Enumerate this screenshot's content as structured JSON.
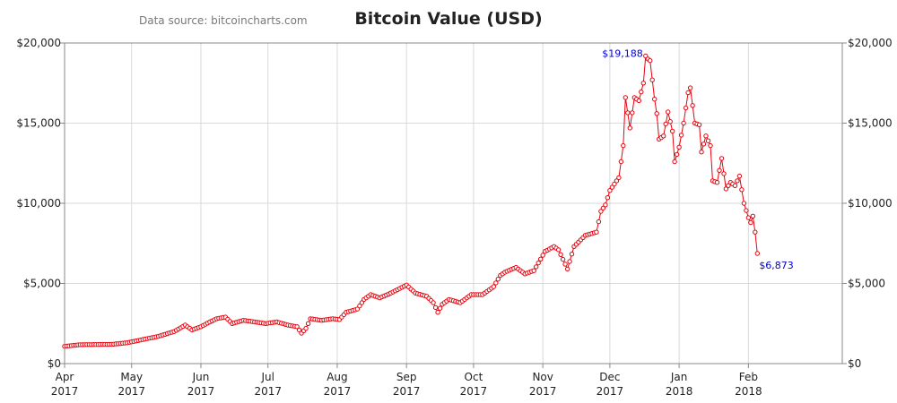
{
  "header": {
    "title": "Bitcoin Value (USD)",
    "source": "Data source: bitcoincharts.com"
  },
  "chart_data": {
    "type": "line",
    "title": "Bitcoin Value (USD)",
    "xlabel": "",
    "ylabel": "",
    "x_axis_type": "date",
    "xlim": [
      "2017-04-01",
      "2018-03-15"
    ],
    "ylim": [
      0,
      20000
    ],
    "grid": true,
    "legend": "none",
    "line_color": "#e8000b",
    "marker_fill": "#ffffff",
    "annotation_color": "#0000cc",
    "y_ticks": [
      0,
      5000,
      10000,
      15000,
      20000
    ],
    "y_tick_labels": [
      "$0",
      "$5,000",
      "$10,000",
      "$15,000",
      "$20,000"
    ],
    "x_ticks": [
      {
        "date": "2017-04-01",
        "month": "Apr",
        "year": "2017"
      },
      {
        "date": "2017-05-01",
        "month": "May",
        "year": "2017"
      },
      {
        "date": "2017-06-01",
        "month": "Jun",
        "year": "2017"
      },
      {
        "date": "2017-07-01",
        "month": "Jul",
        "year": "2017"
      },
      {
        "date": "2017-08-01",
        "month": "Aug",
        "year": "2017"
      },
      {
        "date": "2017-09-01",
        "month": "Sep",
        "year": "2017"
      },
      {
        "date": "2017-10-01",
        "month": "Oct",
        "year": "2017"
      },
      {
        "date": "2017-11-01",
        "month": "Nov",
        "year": "2017"
      },
      {
        "date": "2017-12-01",
        "month": "Dec",
        "year": "2017"
      },
      {
        "date": "2018-01-01",
        "month": "Jan",
        "year": "2018"
      },
      {
        "date": "2018-02-01",
        "month": "Feb",
        "year": "2018"
      }
    ],
    "annotations": [
      {
        "date": "2017-12-17",
        "value": 19188,
        "label": "$19,188"
      },
      {
        "date": "2018-02-05",
        "value": 6873,
        "label": "$6,873"
      }
    ],
    "series": [
      {
        "values": [
          [
            "2017-04-01",
            1080
          ],
          [
            "2017-04-08",
            1180
          ],
          [
            "2017-04-15",
            1190
          ],
          [
            "2017-04-22",
            1200
          ],
          [
            "2017-04-29",
            1300
          ],
          [
            "2017-05-06",
            1500
          ],
          [
            "2017-05-13",
            1700
          ],
          [
            "2017-05-20",
            2000
          ],
          [
            "2017-05-25",
            2400
          ],
          [
            "2017-05-28",
            2100
          ],
          [
            "2017-06-01",
            2300
          ],
          [
            "2017-06-05",
            2600
          ],
          [
            "2017-06-08",
            2800
          ],
          [
            "2017-06-12",
            2900
          ],
          [
            "2017-06-15",
            2500
          ],
          [
            "2017-06-20",
            2700
          ],
          [
            "2017-06-25",
            2600
          ],
          [
            "2017-06-30",
            2500
          ],
          [
            "2017-07-05",
            2600
          ],
          [
            "2017-07-10",
            2400
          ],
          [
            "2017-07-14",
            2300
          ],
          [
            "2017-07-16",
            1900
          ],
          [
            "2017-07-18",
            2200
          ],
          [
            "2017-07-20",
            2800
          ],
          [
            "2017-07-25",
            2700
          ],
          [
            "2017-07-30",
            2800
          ],
          [
            "2017-08-02",
            2750
          ],
          [
            "2017-08-05",
            3200
          ],
          [
            "2017-08-10",
            3400
          ],
          [
            "2017-08-13",
            4000
          ],
          [
            "2017-08-16",
            4300
          ],
          [
            "2017-08-20",
            4100
          ],
          [
            "2017-08-25",
            4400
          ],
          [
            "2017-09-01",
            4900
          ],
          [
            "2017-09-05",
            4400
          ],
          [
            "2017-09-10",
            4200
          ],
          [
            "2017-09-13",
            3800
          ],
          [
            "2017-09-15",
            3200
          ],
          [
            "2017-09-17",
            3700
          ],
          [
            "2017-09-20",
            4000
          ],
          [
            "2017-09-25",
            3800
          ],
          [
            "2017-09-30",
            4300
          ],
          [
            "2017-10-05",
            4300
          ],
          [
            "2017-10-10",
            4800
          ],
          [
            "2017-10-13",
            5500
          ],
          [
            "2017-10-15",
            5700
          ],
          [
            "2017-10-20",
            6000
          ],
          [
            "2017-10-24",
            5600
          ],
          [
            "2017-10-28",
            5800
          ],
          [
            "2017-11-02",
            7000
          ],
          [
            "2017-11-06",
            7300
          ],
          [
            "2017-11-08",
            7100
          ],
          [
            "2017-11-10",
            6500
          ],
          [
            "2017-11-12",
            5900
          ],
          [
            "2017-11-15",
            7300
          ],
          [
            "2017-11-20",
            8000
          ],
          [
            "2017-11-25",
            8200
          ],
          [
            "2017-11-27",
            9500
          ],
          [
            "2017-11-29",
            9900
          ],
          [
            "2017-12-01",
            10800
          ],
          [
            "2017-12-05",
            11600
          ],
          [
            "2017-12-07",
            13600
          ],
          [
            "2017-12-08",
            16600
          ],
          [
            "2017-12-10",
            14700
          ],
          [
            "2017-12-12",
            16600
          ],
          [
            "2017-12-14",
            16400
          ],
          [
            "2017-12-16",
            17500
          ],
          [
            "2017-12-17",
            19188
          ],
          [
            "2017-12-18",
            19000
          ],
          [
            "2017-12-19",
            18900
          ],
          [
            "2017-12-21",
            16500
          ],
          [
            "2017-12-22",
            15600
          ],
          [
            "2017-12-23",
            14000
          ],
          [
            "2017-12-25",
            14200
          ],
          [
            "2017-12-27",
            15700
          ],
          [
            "2017-12-29",
            14500
          ],
          [
            "2017-12-30",
            12600
          ],
          [
            "2018-01-01",
            13500
          ],
          [
            "2018-01-03",
            15000
          ],
          [
            "2018-01-05",
            16900
          ],
          [
            "2018-01-06",
            17200
          ],
          [
            "2018-01-07",
            16100
          ],
          [
            "2018-01-08",
            15000
          ],
          [
            "2018-01-10",
            14900
          ],
          [
            "2018-01-11",
            13200
          ],
          [
            "2018-01-13",
            14200
          ],
          [
            "2018-01-15",
            13600
          ],
          [
            "2018-01-16",
            11400
          ],
          [
            "2018-01-18",
            11300
          ],
          [
            "2018-01-20",
            12800
          ],
          [
            "2018-01-22",
            10900
          ],
          [
            "2018-01-24",
            11300
          ],
          [
            "2018-01-26",
            11100
          ],
          [
            "2018-01-28",
            11700
          ],
          [
            "2018-01-30",
            10000
          ],
          [
            "2018-02-01",
            9100
          ],
          [
            "2018-02-02",
            8800
          ],
          [
            "2018-02-03",
            9200
          ],
          [
            "2018-02-04",
            8200
          ],
          [
            "2018-02-05",
            6873
          ]
        ]
      }
    ]
  }
}
